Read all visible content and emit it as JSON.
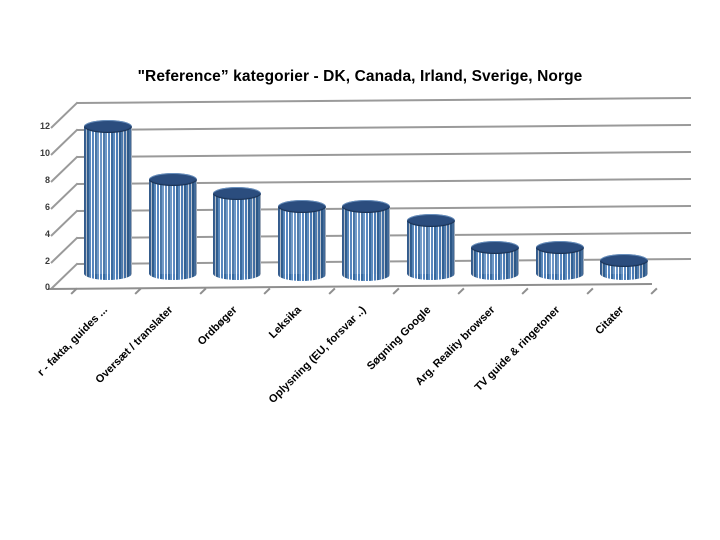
{
  "title": "\"Reference” kategorier - DK, Canada, Irland, Sverige, Norge",
  "chart_data": {
    "type": "bar",
    "style": "3d-cylinder",
    "title": "\"Reference” kategorier - DK, Canada, Irland, Sverige, Norge",
    "categories": [
      "r - fakta, guides ...",
      "Oversæt / translater",
      "Ordbøger",
      "Leksika",
      "Oplysning (EU, forsvar ..)",
      "Søgning Google",
      "Arg. Reality browser",
      "TV guide & ringetoner",
      "Citater"
    ],
    "values": [
      11,
      7,
      6,
      5,
      5,
      4,
      2,
      2,
      1
    ],
    "xlabel": "",
    "ylabel": "",
    "ylim": [
      0,
      12
    ],
    "ytick_interval": 2,
    "yticks": [
      "12",
      "10",
      "8",
      "6",
      "4",
      "2",
      "0"
    ],
    "grid": true,
    "legend": "none",
    "colors": {
      "cylinder_body": "#4f81bd",
      "cylinder_top": "#2b4d7e",
      "gridline": "#9a9a9a",
      "axis_text": "#3a3a3a",
      "title_text": "#000000",
      "background": "#ffffff"
    }
  }
}
